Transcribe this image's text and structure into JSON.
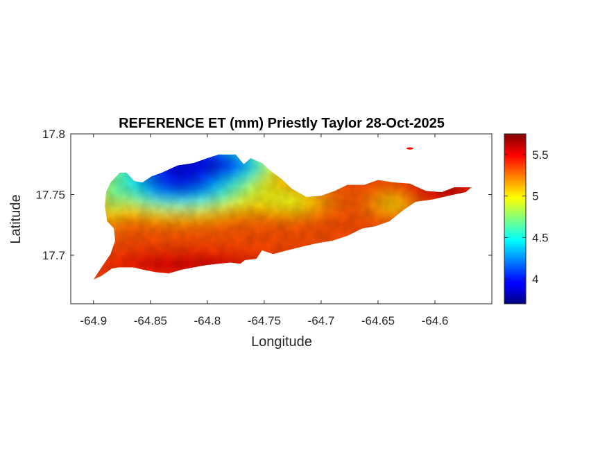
{
  "chart_data": {
    "type": "heatmap",
    "title": "REFERENCE ET (mm) Priestly Taylor 28-Oct-2025",
    "xlabel": "Longitude",
    "ylabel": "Latitude",
    "xlim": [
      -64.92,
      -64.55
    ],
    "ylim": [
      17.66,
      17.8
    ],
    "xticks": [
      -64.9,
      -64.85,
      -64.8,
      -64.75,
      -64.7,
      -64.65,
      -64.6
    ],
    "xtick_labels": [
      "-64.9",
      "-64.85",
      "-64.8",
      "-64.75",
      "-64.7",
      "-64.65",
      "-64.6"
    ],
    "yticks": [
      17.7,
      17.75,
      17.8
    ],
    "ytick_labels": [
      "17.7",
      "17.75",
      "17.8"
    ],
    "colorbar": {
      "range": [
        3.7,
        5.75
      ],
      "ticks": [
        4,
        4.5,
        5,
        5.5
      ],
      "tick_labels": [
        "4",
        "4.5",
        "5",
        "5.5"
      ],
      "colormap": "jet",
      "position": "right"
    },
    "grid": false,
    "island_outline": [
      [
        -64.9,
        17.68
      ],
      [
        -64.893,
        17.69
      ],
      [
        -64.885,
        17.701
      ],
      [
        -64.881,
        17.712
      ],
      [
        -64.882,
        17.722
      ],
      [
        -64.888,
        17.728
      ],
      [
        -64.89,
        17.74
      ],
      [
        -64.889,
        17.752
      ],
      [
        -64.885,
        17.76
      ],
      [
        -64.877,
        17.768
      ],
      [
        -64.871,
        17.768
      ],
      [
        -64.864,
        17.761
      ],
      [
        -64.857,
        17.76
      ],
      [
        -64.849,
        17.765
      ],
      [
        -64.84,
        17.768
      ],
      [
        -64.826,
        17.774
      ],
      [
        -64.812,
        17.776
      ],
      [
        -64.8,
        17.78
      ],
      [
        -64.79,
        17.783
      ],
      [
        -64.775,
        17.783
      ],
      [
        -64.768,
        17.775
      ],
      [
        -64.762,
        17.78
      ],
      [
        -64.752,
        17.776
      ],
      [
        -64.745,
        17.77
      ],
      [
        -64.735,
        17.763
      ],
      [
        -64.726,
        17.755
      ],
      [
        -64.713,
        17.748
      ],
      [
        -64.7,
        17.749
      ],
      [
        -64.688,
        17.753
      ],
      [
        -64.677,
        17.758
      ],
      [
        -64.662,
        17.758
      ],
      [
        -64.65,
        17.762
      ],
      [
        -64.636,
        17.76
      ],
      [
        -64.622,
        17.759
      ],
      [
        -64.608,
        17.753
      ],
      [
        -64.594,
        17.752
      ],
      [
        -64.583,
        17.756
      ],
      [
        -64.568,
        17.756
      ],
      [
        -64.573,
        17.752
      ],
      [
        -64.588,
        17.749
      ],
      [
        -64.602,
        17.746
      ],
      [
        -64.617,
        17.744
      ],
      [
        -64.628,
        17.737
      ],
      [
        -64.64,
        17.728
      ],
      [
        -64.652,
        17.724
      ],
      [
        -64.664,
        17.722
      ],
      [
        -64.677,
        17.716
      ],
      [
        -64.69,
        17.712
      ],
      [
        -64.703,
        17.71
      ],
      [
        -64.717,
        17.707
      ],
      [
        -64.73,
        17.704
      ],
      [
        -64.742,
        17.701
      ],
      [
        -64.752,
        17.704
      ],
      [
        -64.757,
        17.697
      ],
      [
        -64.767,
        17.696
      ],
      [
        -64.771,
        17.693
      ],
      [
        -64.78,
        17.694
      ],
      [
        -64.79,
        17.693
      ],
      [
        -64.8,
        17.692
      ],
      [
        -64.812,
        17.69
      ],
      [
        -64.823,
        17.688
      ],
      [
        -64.834,
        17.685
      ],
      [
        -64.845,
        17.686
      ],
      [
        -64.856,
        17.688
      ],
      [
        -64.865,
        17.69
      ],
      [
        -64.878,
        17.69
      ],
      [
        -64.884,
        17.689
      ],
      [
        -64.893,
        17.683
      ]
    ],
    "islet": {
      "lon": -64.622,
      "lat": 17.788,
      "value": 5.5
    }
  }
}
